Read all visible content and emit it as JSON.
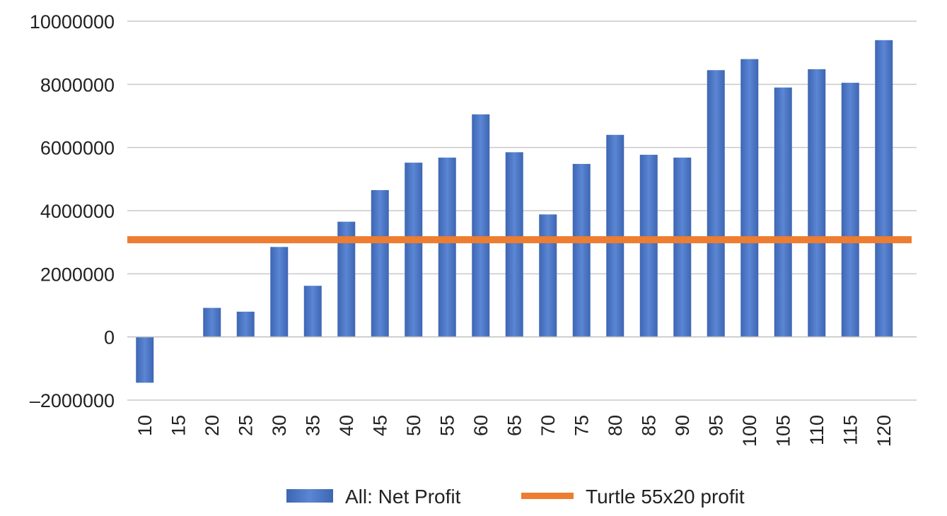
{
  "chart_data": {
    "type": "bar",
    "categories": [
      "10",
      "15",
      "20",
      "25",
      "30",
      "35",
      "40",
      "45",
      "50",
      "55",
      "60",
      "65",
      "70",
      "75",
      "80",
      "85",
      "90",
      "95",
      "100",
      "105",
      "110",
      "115",
      "120"
    ],
    "series": [
      {
        "name": "All: Net Profit",
        "type": "bar",
        "color": "#4472c4",
        "values": [
          -1450000,
          0,
          920000,
          800000,
          2850000,
          1620000,
          3650000,
          4650000,
          5520000,
          5680000,
          7050000,
          5850000,
          3880000,
          5480000,
          6400000,
          5770000,
          5680000,
          8450000,
          8800000,
          7900000,
          8480000,
          8050000,
          9400000
        ]
      },
      {
        "name": "Turtle 55x20 profit",
        "type": "line",
        "color": "#ed7d31",
        "value": 3080000
      }
    ],
    "y_ticks": [
      "10000000",
      "8000000",
      "6000000",
      "4000000",
      "2000000",
      "0",
      "–2000000"
    ],
    "ylim": [
      -2000000,
      10000000
    ],
    "grid": true,
    "legend_position": "bottom"
  }
}
